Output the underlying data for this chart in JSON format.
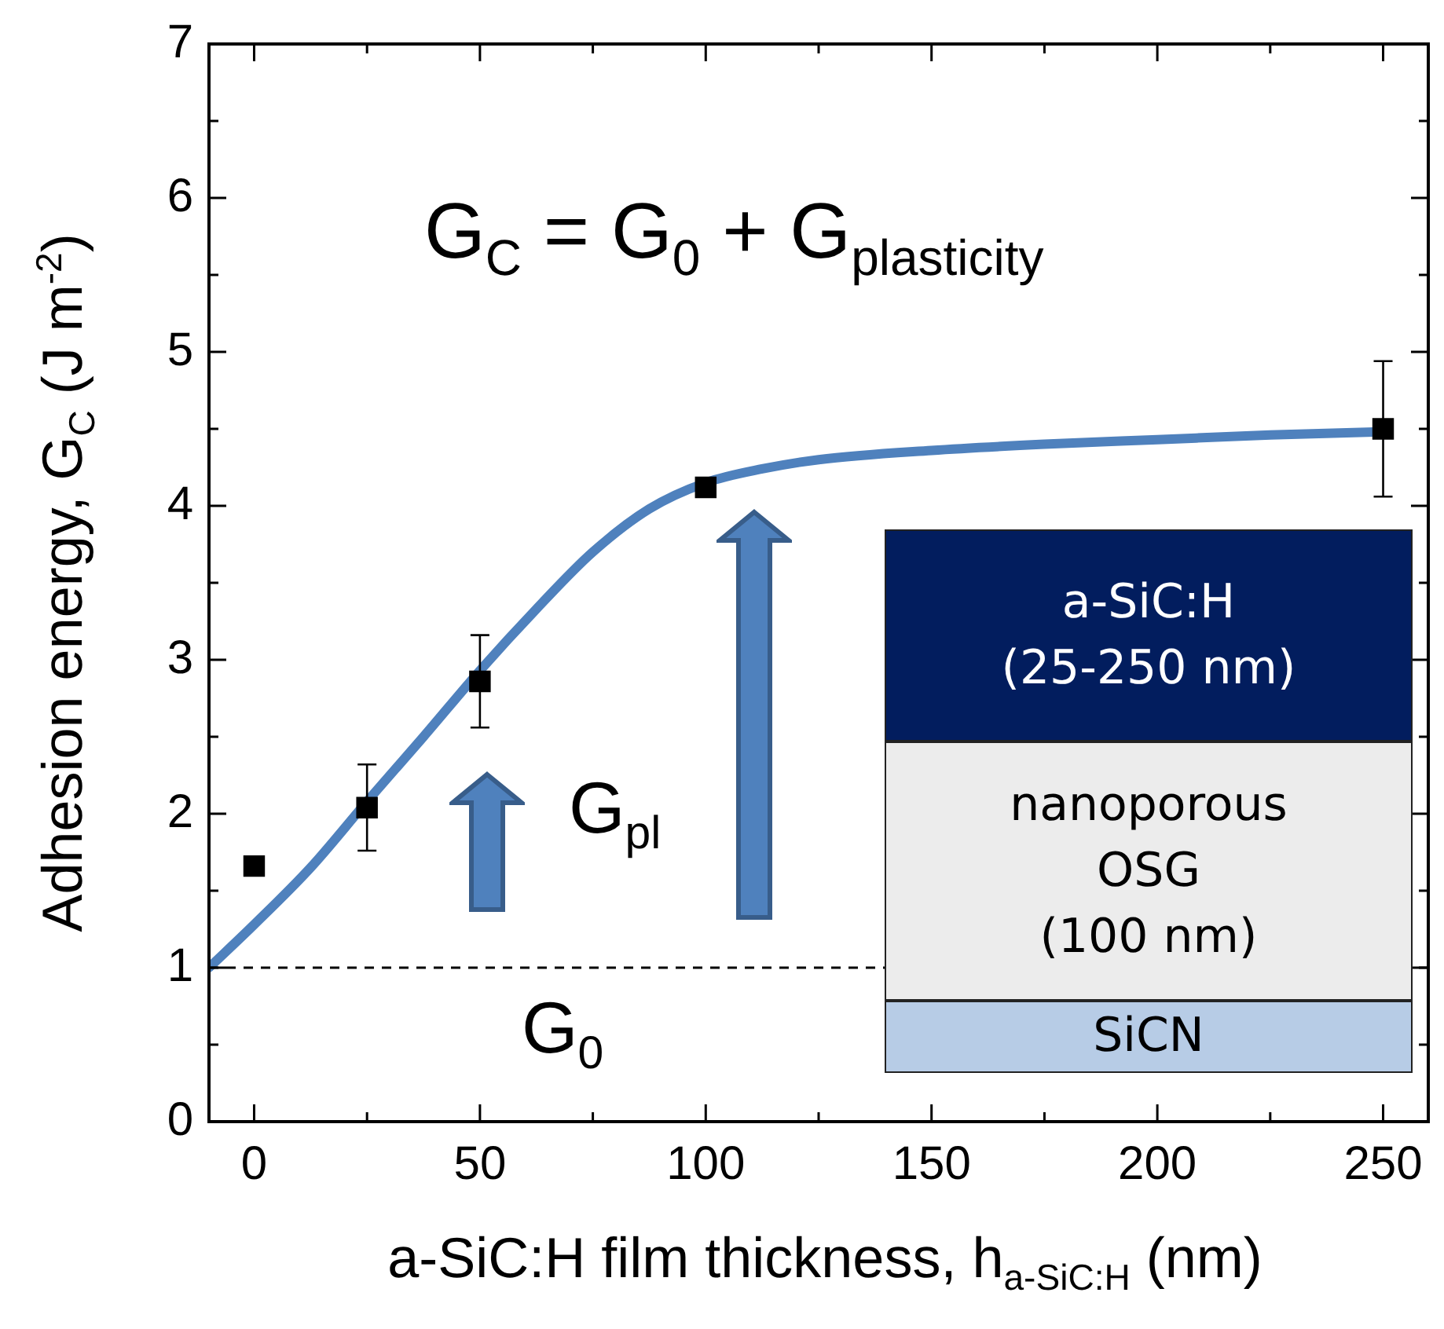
{
  "chart_data": {
    "type": "scatter",
    "xlabel": "a-SiC:H film thickness, h$_{a-SiC:H}$ (nm)",
    "ylabel": "Adhesion energy, G$_{C}$ (J m$^{-2}$)",
    "xlim": [
      -10,
      260
    ],
    "xticks": [
      0,
      {
        "value": 25,
        "label": null
      },
      50,
      {
        "value": 75,
        "label": null
      },
      100,
      {
        "value": 125,
        "label": null
      },
      150,
      {
        "value": 175,
        "label": null
      },
      200,
      {
        "value": 225,
        "label": null
      },
      250
    ],
    "ylim": [
      0,
      7
    ],
    "yticks": [
      0,
      {
        "value": 0.5,
        "label": null
      },
      1,
      {
        "value": 1.5,
        "label": null
      },
      2,
      {
        "value": 2.5,
        "label": null
      },
      3,
      {
        "value": 3.5,
        "label": null
      },
      4,
      {
        "value": 4.5,
        "label": null
      },
      5,
      {
        "value": 5.5,
        "label": null
      },
      6,
      {
        "value": 6.5,
        "label": null
      },
      7
    ],
    "series": [
      {
        "type": "line",
        "color": "#4f81bd",
        "marker": "none",
        "x": [
          -10,
          0,
          12.5,
          25,
          37.5,
          50,
          62.5,
          75,
          87.5,
          100,
          112.5,
          125,
          150,
          175,
          200,
          225,
          248
        ],
        "values": [
          1,
          1.28,
          1.65,
          2.08,
          2.5,
          2.93,
          3.33,
          3.7,
          3.98,
          4.15,
          4.24,
          4.3,
          4.36,
          4.4,
          4.43,
          4.46,
          4.48
        ]
      },
      {
        "color": "#000000",
        "marker": "square",
        "x": [
          0,
          25,
          50,
          100,
          250
        ],
        "values": [
          1.66,
          2.04,
          2.86,
          4.12,
          4.5
        ],
        "errors": [
          null,
          0.28,
          0.3,
          null,
          0.44
        ]
      }
    ],
    "ref_lines": [
      {
        "axis": "y",
        "value": 1,
        "line_style": "dashed",
        "color": "#000000"
      }
    ],
    "annotations": [
      "G$_{C}$ = G$_{0}$ + G$_{plasticity}$",
      "G$_{pl}$",
      "G$_{0}$",
      "a-SiC:H",
      "(25-250 nm)",
      "nanoporous",
      "OSG",
      "(100 nm)",
      "SiCN"
    ],
    "grid": false,
    "legend": false
  }
}
